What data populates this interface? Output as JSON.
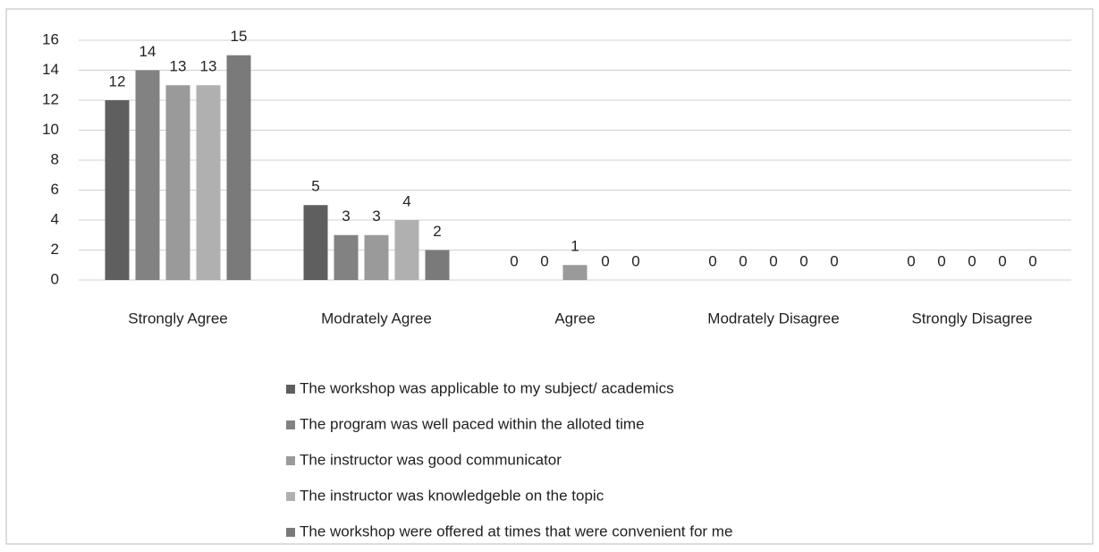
{
  "chart_data": {
    "type": "bar",
    "categories": [
      "Strongly Agree",
      "Modrately Agree",
      "Agree",
      "Modrately Disagree",
      "Strongly Disagree"
    ],
    "series": [
      {
        "name": "The workshop was applicable to my subject/ academics",
        "color": "#5f5f5f",
        "values": [
          12,
          5,
          0,
          0,
          0
        ]
      },
      {
        "name": "The program was well paced within the alloted time",
        "color": "#828282",
        "values": [
          14,
          3,
          0,
          0,
          0
        ]
      },
      {
        "name": "The instructor was good communicator",
        "color": "#9a9a9a",
        "values": [
          13,
          3,
          1,
          0,
          0
        ]
      },
      {
        "name": "The instructor was knowledgeble on the topic",
        "color": "#b0b0b0",
        "values": [
          13,
          4,
          0,
          0,
          0
        ]
      },
      {
        "name": "The workshop were offered at times that were convenient for me",
        "color": "#7a7a7a",
        "values": [
          15,
          2,
          0,
          0,
          0
        ]
      }
    ],
    "ylim": [
      0,
      16
    ],
    "yticks": [
      0,
      2,
      4,
      6,
      8,
      10,
      12,
      14,
      16
    ],
    "grid": true,
    "legend": "bottom"
  }
}
